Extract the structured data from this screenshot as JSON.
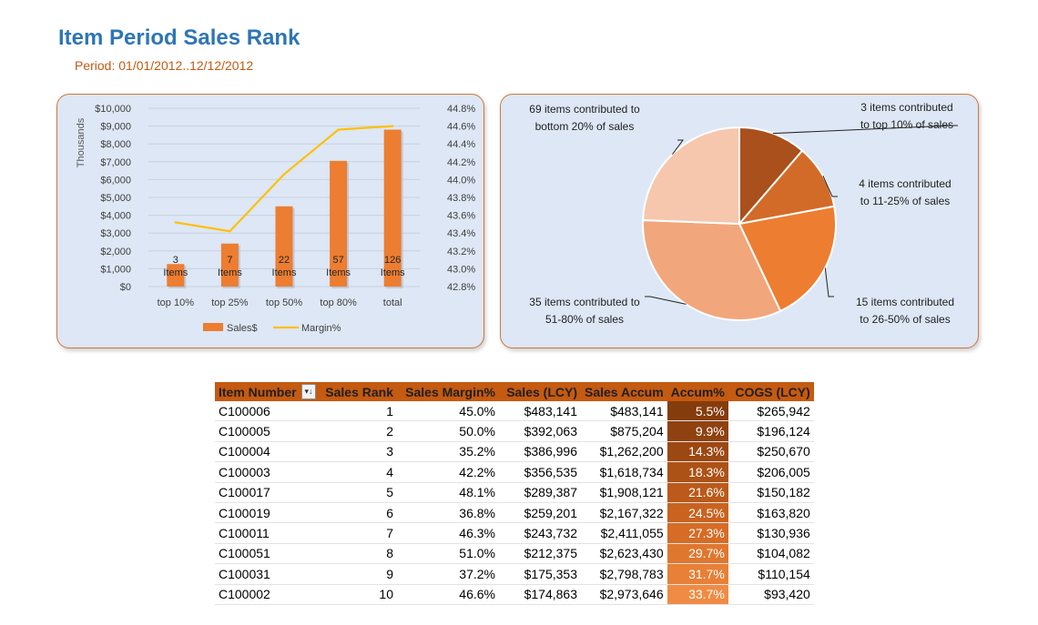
{
  "header": {
    "title": "Item Period Sales Rank",
    "period": "Period:  01/01/2012..12/12/2012"
  },
  "chart_data": [
    {
      "type": "bar",
      "categories": [
        "top 10%",
        "top 25%",
        "top 50%",
        "top 80%",
        "total"
      ],
      "item_labels": [
        {
          "count": "3",
          "word": "Items"
        },
        {
          "count": "7",
          "word": "Items"
        },
        {
          "count": "22",
          "word": "Items"
        },
        {
          "count": "57",
          "word": "Items"
        },
        {
          "count": "126",
          "word": "Items"
        }
      ],
      "series": [
        {
          "name": "Sales$",
          "kind": "bar",
          "axis": "left",
          "color": "#ed7d31",
          "values": [
            1262,
            2411,
            4500,
            7050,
            8800
          ]
        },
        {
          "name": "Margin%",
          "kind": "line",
          "axis": "right",
          "color": "#ffc000",
          "values": [
            43.52,
            43.42,
            44.06,
            44.56,
            44.6
          ]
        }
      ],
      "ylabel": "Thousands",
      "ylim": [
        0,
        10000
      ],
      "y_ticks": [
        "$0",
        "$1,000",
        "$2,000",
        "$3,000",
        "$4,000",
        "$5,000",
        "$6,000",
        "$7,000",
        "$8,000",
        "$9,000",
        "$10,000"
      ],
      "y2lim": [
        42.8,
        44.8
      ],
      "y2_ticks": [
        "42.8%",
        "43.0%",
        "43.2%",
        "43.4%",
        "43.6%",
        "43.8%",
        "44.0%",
        "44.2%",
        "44.4%",
        "44.6%",
        "44.8%"
      ],
      "grid": true,
      "legend": "bottom"
    },
    {
      "type": "pie",
      "slices": [
        {
          "value": 3,
          "label_lines": [
            "3 items contributed",
            "to top 10% of sales"
          ],
          "color": "#a9501c"
        },
        {
          "value": 4,
          "label_lines": [
            "4 items contributed",
            "to 11-25% of sales"
          ],
          "color": "#d26b28"
        },
        {
          "value": 15,
          "label_lines": [
            "15 items contributed",
            "to 26-50% of sales"
          ],
          "color": "#ed7d31"
        },
        {
          "value": 35,
          "label_lines": [
            "35 items contributed to",
            "51-80% of sales"
          ],
          "color": "#f2a67c"
        },
        {
          "value": 69,
          "label_lines": [
            "69 items contributed to",
            "bottom 20% of sales"
          ],
          "color": "#f6c7ad"
        }
      ],
      "slice_percents": [
        11.3,
        10.8,
        20.9,
        32.6,
        24.4
      ]
    }
  ],
  "table": {
    "headers": {
      "item": "Item Number",
      "rank": "Sales Rank",
      "margin": "Sales Margin%",
      "sales": "Sales (LCY)",
      "accum": "Sales Accum",
      "pct": "Accum%",
      "cogs": "COGS (LCY)"
    },
    "sort_icon": "sort-filter-icon",
    "rows": [
      {
        "item": "C100006",
        "rank": "1",
        "margin": "45.0%",
        "sales": "$483,141",
        "accum": "$483,141",
        "pct": "5.5%",
        "cogs": "$265,942",
        "pct_color": "#843c0c"
      },
      {
        "item": "C100005",
        "rank": "2",
        "margin": "50.0%",
        "sales": "$392,063",
        "accum": "$875,204",
        "pct": "9.9%",
        "cogs": "$196,124",
        "pct_color": "#8f420f"
      },
      {
        "item": "C100004",
        "rank": "3",
        "margin": "35.2%",
        "sales": "$386,996",
        "accum": "$1,262,200",
        "pct": "14.3%",
        "cogs": "$250,670",
        "pct_color": "#9c4812"
      },
      {
        "item": "C100003",
        "rank": "4",
        "margin": "42.2%",
        "sales": "$356,535",
        "accum": "$1,618,734",
        "pct": "18.3%",
        "cogs": "$206,005",
        "pct_color": "#ad5216"
      },
      {
        "item": "C100017",
        "rank": "5",
        "margin": "48.1%",
        "sales": "$289,387",
        "accum": "$1,908,121",
        "pct": "21.6%",
        "cogs": "$150,182",
        "pct_color": "#bb5a1a"
      },
      {
        "item": "C100019",
        "rank": "6",
        "margin": "36.8%",
        "sales": "$259,201",
        "accum": "$2,167,322",
        "pct": "24.5%",
        "cogs": "$163,820",
        "pct_color": "#c9631f"
      },
      {
        "item": "C100011",
        "rank": "7",
        "margin": "46.3%",
        "sales": "$243,732",
        "accum": "$2,411,055",
        "pct": "27.3%",
        "cogs": "$130,936",
        "pct_color": "#d66c25"
      },
      {
        "item": "C100051",
        "rank": "8",
        "margin": "51.0%",
        "sales": "$212,375",
        "accum": "$2,623,430",
        "pct": "29.7%",
        "cogs": "$104,082",
        "pct_color": "#e0772e"
      },
      {
        "item": "C100031",
        "rank": "9",
        "margin": "37.2%",
        "sales": "$175,353",
        "accum": "$2,798,783",
        "pct": "31.7%",
        "cogs": "$110,154",
        "pct_color": "#e88037"
      },
      {
        "item": "C100002",
        "rank": "10",
        "margin": "46.6%",
        "sales": "$174,863",
        "accum": "$2,973,646",
        "pct": "33.7%",
        "cogs": "$93,420",
        "pct_color": "#f08b44"
      }
    ]
  }
}
